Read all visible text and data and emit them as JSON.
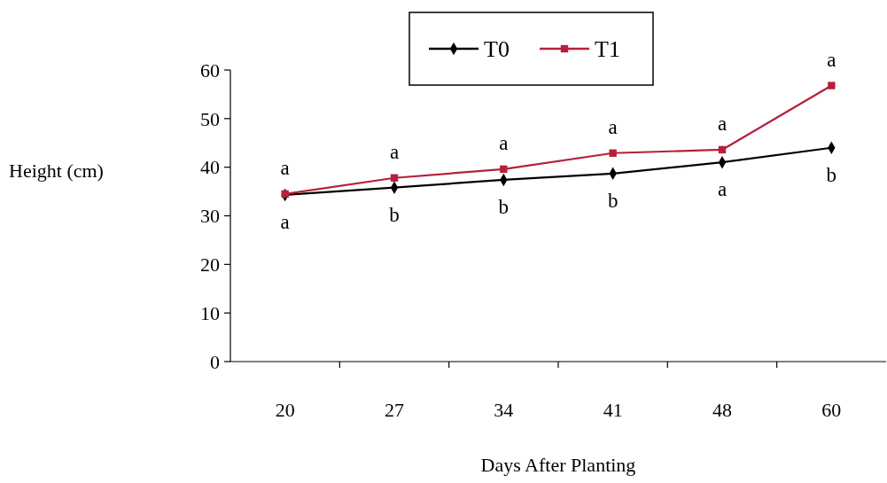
{
  "chart_data": {
    "type": "line",
    "xlabel": "Days After Planting",
    "ylabel": "Height (cm)",
    "categories": [
      "20",
      "27",
      "34",
      "41",
      "48",
      "60"
    ],
    "ylim": [
      0,
      60
    ],
    "yticks": [
      0,
      10,
      20,
      30,
      40,
      50,
      60
    ],
    "grid": false,
    "legend": "top",
    "series": [
      {
        "name": "T0",
        "color": "#000000",
        "marker": "diamond",
        "values": [
          34.3,
          35.8,
          37.4,
          38.7,
          41,
          44
        ]
      },
      {
        "name": "T1",
        "color": "#b5203c",
        "marker": "square",
        "values": [
          34.5,
          37.8,
          39.6,
          42.9,
          43.6,
          56.8
        ]
      }
    ],
    "annotations": [
      "a",
      "a",
      "a",
      "b",
      "a",
      "b",
      "a",
      "b",
      "a",
      "a",
      "a",
      "b"
    ]
  }
}
